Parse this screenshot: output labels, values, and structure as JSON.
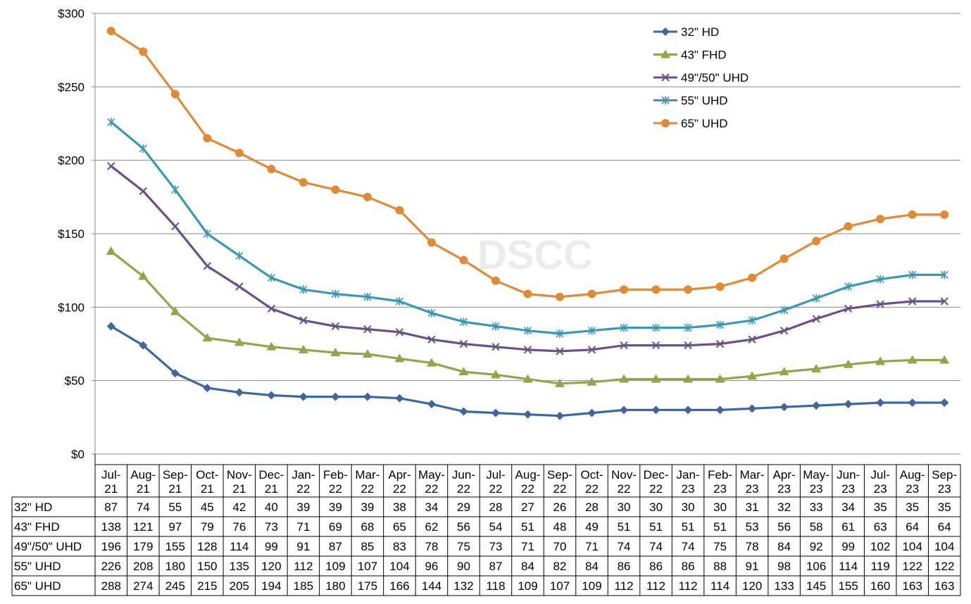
{
  "chart_data": {
    "type": "line",
    "watermark": "DSCC",
    "x": [
      "Jul-21",
      "Aug-21",
      "Sep-21",
      "Oct-21",
      "Nov-21",
      "Dec-21",
      "Jan-22",
      "Feb-22",
      "Mar-22",
      "Apr-22",
      "May-22",
      "Jun-22",
      "Jul-22",
      "Aug-22",
      "Sep-22",
      "Oct-22",
      "Nov-22",
      "Dec-22",
      "Jan-23",
      "Feb-23",
      "Mar-23",
      "Apr-23",
      "May-23",
      "Jun-23",
      "Jul-23",
      "Aug-23",
      "Sep-23"
    ],
    "x_label_lines": [
      [
        "Jul-",
        "21"
      ],
      [
        "Aug-",
        "21"
      ],
      [
        "Sep-",
        "21"
      ],
      [
        "Oct-",
        "21"
      ],
      [
        "Nov-",
        "21"
      ],
      [
        "Dec-",
        "21"
      ],
      [
        "Jan-",
        "22"
      ],
      [
        "Feb-",
        "22"
      ],
      [
        "Mar-",
        "22"
      ],
      [
        "Apr-",
        "22"
      ],
      [
        "May-",
        "22"
      ],
      [
        "Jun-",
        "22"
      ],
      [
        "Jul-",
        "22"
      ],
      [
        "Aug-",
        "22"
      ],
      [
        "Sep-",
        "22"
      ],
      [
        "Oct-",
        "22"
      ],
      [
        "Nov-",
        "22"
      ],
      [
        "Dec-",
        "22"
      ],
      [
        "Jan-",
        "23"
      ],
      [
        "Feb-",
        "23"
      ],
      [
        "Mar-",
        "23"
      ],
      [
        "Apr-",
        "23"
      ],
      [
        "May-",
        "23"
      ],
      [
        "Jun-",
        "23"
      ],
      [
        "Jul-",
        "23"
      ],
      [
        "Aug-",
        "23"
      ],
      [
        "Sep-",
        "23"
      ]
    ],
    "ylim": [
      0,
      300
    ],
    "yticks": [
      0,
      50,
      100,
      150,
      200,
      250,
      300
    ],
    "ytick_labels": [
      "$0",
      "$50",
      "$100",
      "$150",
      "$200",
      "$250",
      "$300"
    ],
    "grid": true,
    "legend_position": "top-right",
    "data_table": true,
    "series": [
      {
        "name": "32\" HD",
        "color": "#3c67a0",
        "marker": "diamond",
        "values": [
          87,
          74,
          55,
          45,
          42,
          40,
          39,
          39,
          39,
          38,
          34,
          29,
          28,
          27,
          26,
          28,
          30,
          30,
          30,
          30,
          31,
          32,
          33,
          34,
          35,
          35,
          35
        ]
      },
      {
        "name": "43\" FHD",
        "color": "#8ca847",
        "marker": "triangle",
        "values": [
          138,
          121,
          97,
          79,
          76,
          73,
          71,
          69,
          68,
          65,
          62,
          56,
          54,
          51,
          48,
          49,
          51,
          51,
          51,
          51,
          53,
          56,
          58,
          61,
          63,
          64,
          64
        ]
      },
      {
        "name": "49\"/50\" UHD",
        "color": "#6b4f8c",
        "marker": "x",
        "values": [
          196,
          179,
          155,
          128,
          114,
          99,
          91,
          87,
          85,
          83,
          78,
          75,
          73,
          71,
          70,
          71,
          74,
          74,
          74,
          75,
          78,
          84,
          92,
          99,
          102,
          104,
          104
        ]
      },
      {
        "name": "55\" UHD",
        "color": "#3a98b4",
        "marker": "star",
        "values": [
          226,
          208,
          180,
          150,
          135,
          120,
          112,
          109,
          107,
          104,
          96,
          90,
          87,
          84,
          82,
          84,
          86,
          86,
          86,
          88,
          91,
          98,
          106,
          114,
          119,
          122,
          122
        ]
      },
      {
        "name": "65\" UHD",
        "color": "#e08a35",
        "marker": "circle",
        "values": [
          288,
          274,
          245,
          215,
          205,
          194,
          185,
          180,
          175,
          166,
          144,
          132,
          118,
          109,
          107,
          109,
          112,
          112,
          112,
          114,
          120,
          133,
          145,
          155,
          160,
          163,
          163
        ]
      }
    ]
  }
}
